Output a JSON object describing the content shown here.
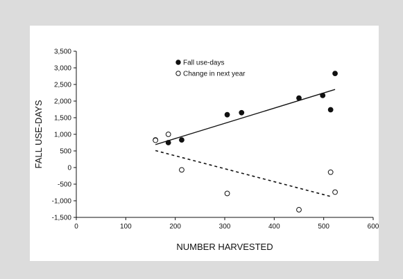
{
  "chart_data": {
    "type": "scatter",
    "xlabel": "NUMBER HARVESTED",
    "ylabel": "FALL USE-DAYS",
    "xlim": [
      0,
      600
    ],
    "ylim": [
      -1500,
      3500
    ],
    "x_ticks": [
      "0",
      "100",
      "200",
      "300",
      "400",
      "500",
      "600"
    ],
    "y_ticks": [
      "3,500",
      "3,000",
      "2,500",
      "2,000",
      "1,500",
      "1,000",
      "500",
      "0",
      "-500",
      "-1,000",
      "-1,500"
    ],
    "x_tick_values": [
      0,
      100,
      200,
      300,
      400,
      500,
      600
    ],
    "y_tick_values": [
      3500,
      3000,
      2500,
      2000,
      1500,
      1000,
      500,
      0,
      -500,
      -1000,
      -1500
    ],
    "grid": false,
    "legend_position": "top-left",
    "series": [
      {
        "name": "Fall use-days",
        "marker": "filled-circle",
        "color": "#111111",
        "points": [
          {
            "x": 160,
            "y": 830
          },
          {
            "x": 186,
            "y": 750
          },
          {
            "x": 213,
            "y": 830
          },
          {
            "x": 305,
            "y": 1590
          },
          {
            "x": 334,
            "y": 1650
          },
          {
            "x": 450,
            "y": 2090
          },
          {
            "x": 498,
            "y": 2170
          },
          {
            "x": 514,
            "y": 1740
          },
          {
            "x": 523,
            "y": 2830
          }
        ],
        "trendline": {
          "style": "solid",
          "from": {
            "x": 160,
            "y": 690
          },
          "to": {
            "x": 523,
            "y": 2350
          }
        }
      },
      {
        "name": "Change in next year",
        "marker": "open-circle",
        "color": "#111111",
        "points": [
          {
            "x": 160,
            "y": 820
          },
          {
            "x": 186,
            "y": 1000
          },
          {
            "x": 213,
            "y": -70
          },
          {
            "x": 305,
            "y": -780
          },
          {
            "x": 450,
            "y": -1270
          },
          {
            "x": 514,
            "y": -140
          },
          {
            "x": 523,
            "y": -740
          }
        ],
        "trendline": {
          "style": "dashed",
          "from": {
            "x": 160,
            "y": 510
          },
          "to": {
            "x": 514,
            "y": -870
          }
        }
      }
    ]
  }
}
